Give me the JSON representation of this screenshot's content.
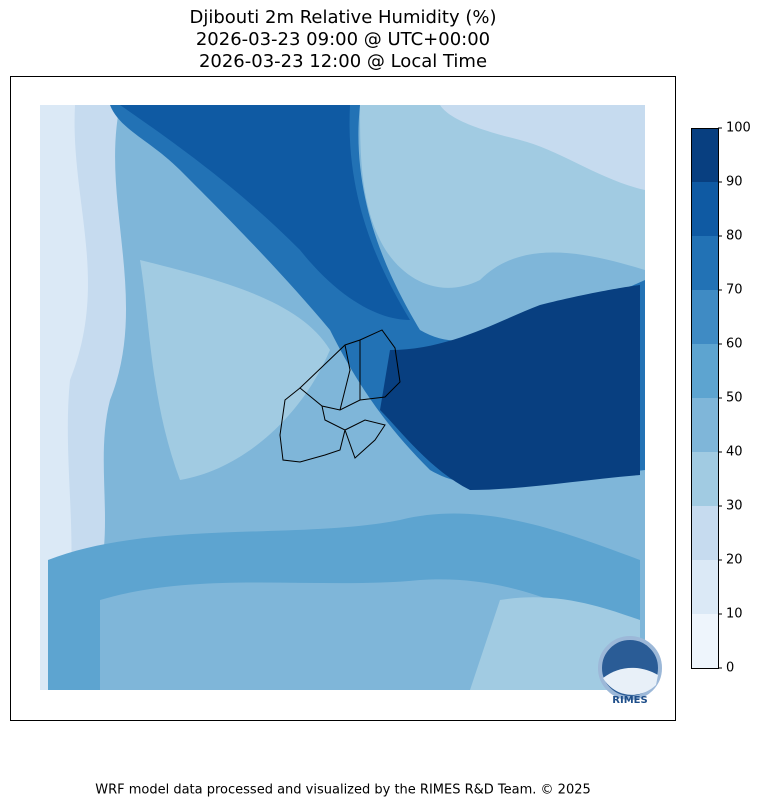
{
  "title": [
    "Djibouti 2m Relative Humidity (%)",
    "2026-03-23 09:00 @ UTC+00:00",
    "2026-03-23 12:00 @ Local Time"
  ],
  "colorbar": {
    "ticks": [
      0,
      10,
      20,
      30,
      40,
      50,
      60,
      70,
      80,
      90,
      100
    ],
    "colors": [
      "#eef5fc",
      "#dbe9f6",
      "#c6dbef",
      "#a1cbe2",
      "#7fb6d9",
      "#5da4d0",
      "#3f8bc4",
      "#2272b5",
      "#0f5aa3",
      "#083f80"
    ]
  },
  "logo": {
    "text": "RIMES"
  },
  "footer": "WRF model data processed and visualized by the RIMES R&D Team. © 2025"
}
